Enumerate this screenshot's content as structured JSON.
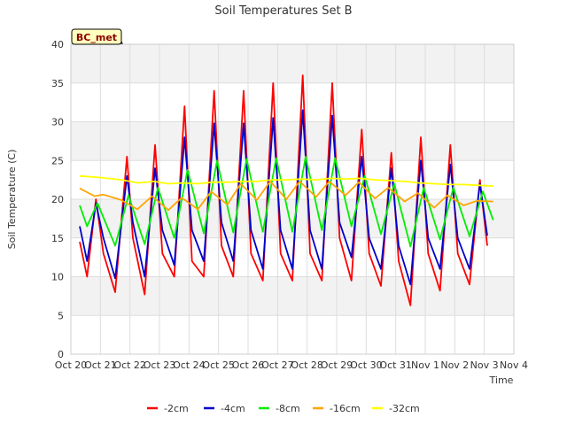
{
  "chart_data": {
    "type": "line",
    "title": "Soil Temperatures Set B",
    "xlabel": "Time",
    "ylabel": "Soil Temperature (C)",
    "ylim": [
      0,
      40
    ],
    "yticks": [
      0,
      5,
      10,
      15,
      20,
      25,
      30,
      35,
      40
    ],
    "xlim": [
      0,
      15
    ],
    "x_tick_labels": [
      "Oct 20",
      "Oct 21",
      "Oct 22",
      "Oct 23",
      "Oct 24",
      "Oct 25",
      "Oct 26",
      "Oct 27",
      "Oct 28",
      "Oct 29",
      "Oct 30",
      "Oct 31",
      "Nov 1",
      "Nov 2",
      "Nov 3",
      "Nov 4"
    ],
    "site_label": "BC_met",
    "grid": true,
    "legend_position": "bottom",
    "series": [
      {
        "name": "-2cm",
        "color": "#ff0000",
        "x": [
          0.3,
          0.55,
          0.85,
          1.1,
          1.5,
          1.9,
          2.1,
          2.5,
          2.85,
          3.1,
          3.5,
          3.85,
          4.1,
          4.5,
          4.85,
          5.1,
          5.5,
          5.85,
          6.1,
          6.5,
          6.85,
          7.1,
          7.5,
          7.85,
          8.1,
          8.5,
          8.85,
          9.1,
          9.5,
          9.85,
          10.1,
          10.5,
          10.85,
          11.1,
          11.5,
          11.85,
          12.1,
          12.5,
          12.85,
          13.1,
          13.5,
          13.85,
          14.1
        ],
        "y": [
          14.5,
          10,
          20,
          13,
          8,
          25.5,
          15,
          7.7,
          27,
          13,
          10,
          32,
          12,
          10,
          34,
          14,
          10,
          34,
          13,
          9.5,
          35,
          13,
          9.5,
          36,
          13,
          9.5,
          35,
          15,
          9.5,
          29,
          13,
          8.8,
          26,
          12,
          6.3,
          28,
          13,
          8.2,
          27,
          13,
          9,
          22.5,
          14
        ]
      },
      {
        "name": "-4cm",
        "color": "#0000cc",
        "x": [
          0.3,
          0.55,
          0.85,
          1.1,
          1.5,
          1.9,
          2.1,
          2.5,
          2.85,
          3.1,
          3.5,
          3.85,
          4.1,
          4.5,
          4.85,
          5.1,
          5.5,
          5.85,
          6.1,
          6.5,
          6.85,
          7.1,
          7.5,
          7.85,
          8.1,
          8.5,
          8.85,
          9.1,
          9.5,
          9.85,
          10.1,
          10.5,
          10.85,
          11.1,
          11.5,
          11.85,
          12.1,
          12.5,
          12.85,
          13.1,
          13.5,
          13.85,
          14.1
        ],
        "y": [
          16.5,
          12,
          19.5,
          15,
          9.8,
          23,
          17,
          10,
          24,
          16,
          11.5,
          28,
          16,
          12,
          29.8,
          17,
          12,
          29.8,
          16,
          11,
          30.5,
          16,
          11,
          31.5,
          16,
          11,
          30.8,
          17,
          12.5,
          25.5,
          15,
          11,
          24,
          14,
          9,
          25,
          15,
          11,
          24.5,
          15,
          11,
          22,
          15.3
        ]
      },
      {
        "name": "-8cm",
        "color": "#00ee00",
        "x": [
          0.3,
          0.55,
          0.9,
          1.5,
          1.95,
          2.5,
          2.95,
          3.5,
          3.95,
          4.5,
          4.95,
          5.5,
          5.95,
          6.5,
          6.95,
          7.5,
          7.95,
          8.5,
          8.95,
          9.5,
          9.95,
          10.5,
          10.95,
          11.5,
          11.95,
          12.5,
          12.95,
          13.5,
          13.95,
          14.3
        ],
        "y": [
          19.2,
          16.5,
          19.5,
          14,
          20.5,
          14.2,
          21.5,
          15,
          23.8,
          15.6,
          25,
          15.7,
          25.2,
          15.8,
          25.3,
          15.8,
          25.5,
          16,
          25.3,
          16.5,
          23,
          15.5,
          22,
          13.9,
          21.5,
          14.8,
          21.5,
          15.2,
          21,
          17.3
        ]
      },
      {
        "name": "-16cm",
        "color": "#ffa500",
        "x": [
          0.3,
          0.8,
          1.1,
          1.7,
          2.25,
          2.75,
          3.3,
          3.75,
          4.3,
          4.75,
          5.3,
          5.75,
          6.3,
          6.75,
          7.3,
          7.75,
          8.3,
          8.75,
          9.3,
          9.75,
          10.3,
          10.75,
          11.3,
          11.75,
          12.3,
          12.75,
          13.3,
          13.75,
          14.3
        ],
        "y": [
          21.4,
          20.4,
          20.6,
          19.9,
          18.7,
          20.4,
          18.6,
          20.2,
          18.7,
          21,
          19.3,
          22,
          19.9,
          22.3,
          20,
          22.3,
          20.3,
          22.3,
          20.5,
          22.2,
          20.1,
          21.5,
          19.7,
          20.8,
          18.9,
          20.5,
          19.2,
          19.8,
          19.7
        ]
      },
      {
        "name": "-32cm",
        "color": "#ffff00",
        "x": [
          0.3,
          1,
          1.7,
          2.3,
          2.8,
          3.3,
          3.8,
          4.3,
          4.8,
          5.3,
          5.8,
          6.3,
          6.8,
          7.3,
          7.8,
          8.3,
          8.8,
          9.3,
          9.8,
          10.3,
          10.8,
          11.3,
          11.8,
          12.3,
          12.8,
          13.3,
          13.8,
          14.3
        ],
        "y": [
          23,
          22.8,
          22.5,
          22.1,
          22.3,
          22,
          22.1,
          22,
          22.2,
          22.2,
          22.3,
          22.3,
          22.5,
          22.5,
          22.6,
          22.5,
          22.7,
          22.6,
          22.7,
          22.5,
          22.4,
          22.3,
          22.1,
          22,
          21.9,
          21.9,
          21.8,
          21.7
        ]
      }
    ]
  }
}
